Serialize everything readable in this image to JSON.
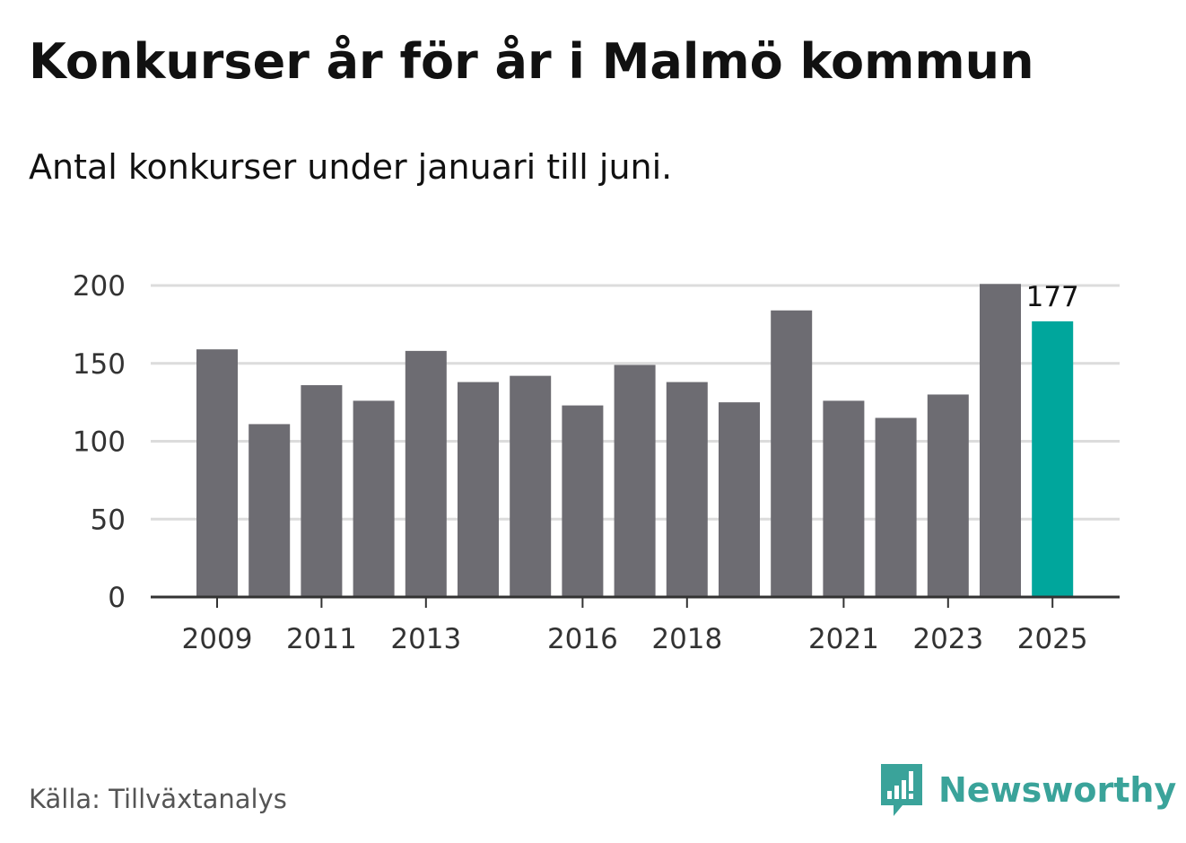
{
  "title": "Konkurser år för år i Malmö kommun",
  "subtitle": "Antal konkurser under januari till juni.",
  "source": "Källa: Tillväxtanalys",
  "brand": {
    "name": "Newsworthy",
    "icon": "newsworthy-logo-icon"
  },
  "colors": {
    "bar": "#6d6c72",
    "highlight": "#00a69c",
    "grid": "#dcdcdc",
    "axis": "#333333",
    "brand": "#3aa39a"
  },
  "chart_data": {
    "type": "bar",
    "title": "Konkurser år för år i Malmö kommun",
    "subtitle": "Antal konkurser under januari till juni.",
    "xlabel": "",
    "ylabel": "",
    "categories": [
      "2009",
      "2010",
      "2011",
      "2012",
      "2013",
      "2014",
      "2015",
      "2016",
      "2017",
      "2018",
      "2019",
      "2020",
      "2021",
      "2022",
      "2023",
      "2024",
      "2025"
    ],
    "values": [
      159,
      111,
      136,
      126,
      158,
      138,
      142,
      123,
      149,
      138,
      125,
      184,
      126,
      115,
      130,
      201,
      177
    ],
    "xtick_labels": [
      "2009",
      "2011",
      "2013",
      "2016",
      "2018",
      "2021",
      "2023",
      "2025"
    ],
    "yticks": [
      "0",
      "50",
      "100",
      "150",
      "200"
    ],
    "ylim": [
      0,
      200
    ],
    "grid": true,
    "highlight": {
      "category": "2025",
      "label": "177"
    }
  }
}
